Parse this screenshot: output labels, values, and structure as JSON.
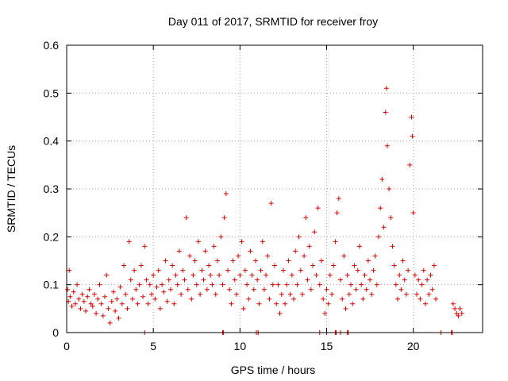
{
  "chart_data": {
    "type": "scatter",
    "title": "Day 011 of 2017, SRMTID for receiver froy",
    "xlabel": "GPS time / hours",
    "ylabel": "SRMTID / TECUs",
    "xlim": [
      0,
      24
    ],
    "ylim": [
      0,
      0.6
    ],
    "xticks": [
      0,
      5,
      10,
      15,
      20
    ],
    "yticks": [
      0,
      0.1,
      0.2,
      0.3,
      0.4,
      0.5,
      0.6
    ],
    "xtick_labels": [
      "0",
      "5",
      "10",
      "15",
      "20"
    ],
    "ytick_labels": [
      "0",
      "0.1",
      "0.2",
      "0.3",
      "0.4",
      "0.5",
      "0.6"
    ],
    "grid": true,
    "marker": "+",
    "color": "#e00000",
    "series": [
      {
        "name": "SRMTID",
        "points": [
          [
            0.05,
            0.09
          ],
          [
            0.1,
            0.065
          ],
          [
            0.15,
            0.13
          ],
          [
            0.2,
            0.075
          ],
          [
            0.3,
            0.055
          ],
          [
            0.4,
            0.085
          ],
          [
            0.5,
            0.06
          ],
          [
            0.6,
            0.1
          ],
          [
            0.7,
            0.07
          ],
          [
            0.8,
            0.05
          ],
          [
            0.9,
            0.08
          ],
          [
            1.0,
            0.065
          ],
          [
            1.1,
            0.045
          ],
          [
            1.2,
            0.075
          ],
          [
            1.3,
            0.09
          ],
          [
            1.4,
            0.06
          ],
          [
            1.5,
            0.055
          ],
          [
            1.6,
            0.08
          ],
          [
            1.7,
            0.04
          ],
          [
            1.8,
            0.07
          ],
          [
            1.9,
            0.1
          ],
          [
            2.0,
            0.06
          ],
          [
            2.1,
            0.035
          ],
          [
            2.2,
            0.075
          ],
          [
            2.3,
            0.12
          ],
          [
            2.4,
            0.05
          ],
          [
            2.5,
            0.02
          ],
          [
            2.6,
            0.065
          ],
          [
            2.7,
            0.085
          ],
          [
            2.8,
            0.045
          ],
          [
            2.9,
            0.07
          ],
          [
            3.0,
            0.03
          ],
          [
            3.1,
            0.095
          ],
          [
            3.2,
            0.06
          ],
          [
            3.3,
            0.14
          ],
          [
            3.4,
            0.08
          ],
          [
            3.5,
            0.05
          ],
          [
            3.6,
            0.19
          ],
          [
            3.7,
            0.11
          ],
          [
            3.8,
            0.07
          ],
          [
            3.9,
            0.13
          ],
          [
            4.0,
            0.09
          ],
          [
            4.1,
            0.06
          ],
          [
            4.2,
            0.1
          ],
          [
            4.3,
            0.14
          ],
          [
            4.4,
            0.075
          ],
          [
            4.5,
            0.18
          ],
          [
            4.6,
            0.11
          ],
          [
            4.7,
            0.06
          ],
          [
            4.8,
            0.1
          ],
          [
            4.9,
            0.08
          ],
          [
            5.0,
            0.12
          ],
          [
            5.1,
            0.07
          ],
          [
            5.2,
            0.095
          ],
          [
            5.3,
            0.13
          ],
          [
            5.4,
            0.05
          ],
          [
            5.5,
            0.1
          ],
          [
            5.6,
            0.085
          ],
          [
            5.7,
            0.15
          ],
          [
            5.8,
            0.065
          ],
          [
            5.9,
            0.11
          ],
          [
            6.0,
            0.09
          ],
          [
            6.1,
            0.14
          ],
          [
            6.2,
            0.06
          ],
          [
            6.3,
            0.12
          ],
          [
            6.4,
            0.1
          ],
          [
            6.5,
            0.17
          ],
          [
            6.6,
            0.08
          ],
          [
            6.7,
            0.13
          ],
          [
            6.8,
            0.11
          ],
          [
            6.9,
            0.24
          ],
          [
            7.0,
            0.09
          ],
          [
            7.1,
            0.16
          ],
          [
            7.2,
            0.07
          ],
          [
            7.3,
            0.12
          ],
          [
            7.4,
            0.15
          ],
          [
            7.5,
            0.1
          ],
          [
            7.6,
            0.19
          ],
          [
            7.7,
            0.08
          ],
          [
            7.8,
            0.13
          ],
          [
            7.9,
            0.11
          ],
          [
            8.0,
            0.17
          ],
          [
            8.1,
            0.09
          ],
          [
            8.2,
            0.14
          ],
          [
            8.3,
            0.12
          ],
          [
            8.4,
            0.1
          ],
          [
            8.5,
            0.18
          ],
          [
            8.6,
            0.08
          ],
          [
            8.7,
            0.15
          ],
          [
            8.8,
            0.12
          ],
          [
            8.9,
            0.2
          ],
          [
            9.0,
            0.1
          ],
          [
            9.1,
            0.24
          ],
          [
            9.2,
            0.29
          ],
          [
            9.3,
            0.13
          ],
          [
            9.4,
            0.09
          ],
          [
            9.5,
            0.06
          ],
          [
            9.6,
            0.15
          ],
          [
            9.7,
            0.11
          ],
          [
            9.8,
            0.08
          ],
          [
            9.9,
            0.16
          ],
          [
            10.0,
            0.12
          ],
          [
            10.1,
            0.19
          ],
          [
            10.2,
            0.05
          ],
          [
            10.3,
            0.13
          ],
          [
            10.4,
            0.1
          ],
          [
            10.5,
            0.07
          ],
          [
            10.6,
            0.17
          ],
          [
            10.7,
            0.12
          ],
          [
            10.8,
            0.09
          ],
          [
            10.9,
            0.15
          ],
          [
            11.0,
            0.11
          ],
          [
            11.1,
            0.06
          ],
          [
            11.2,
            0.13
          ],
          [
            11.3,
            0.19
          ],
          [
            11.4,
            0.09
          ],
          [
            11.5,
            0.12
          ],
          [
            11.6,
            0.16
          ],
          [
            11.7,
            0.07
          ],
          [
            11.8,
            0.27
          ],
          [
            11.9,
            0.1
          ],
          [
            12.0,
            0.14
          ],
          [
            12.1,
            0.06
          ],
          [
            12.2,
            0.1
          ],
          [
            12.3,
            0.04
          ],
          [
            12.4,
            0.08
          ],
          [
            12.5,
            0.13
          ],
          [
            12.6,
            0.06
          ],
          [
            12.7,
            0.1
          ],
          [
            12.8,
            0.15
          ],
          [
            12.9,
            0.08
          ],
          [
            13.0,
            0.12
          ],
          [
            13.1,
            0.07
          ],
          [
            13.2,
            0.17
          ],
          [
            13.3,
            0.1
          ],
          [
            13.4,
            0.2
          ],
          [
            13.5,
            0.13
          ],
          [
            13.6,
            0.08
          ],
          [
            13.7,
            0.16
          ],
          [
            13.8,
            0.24
          ],
          [
            13.9,
            0.11
          ],
          [
            14.0,
            0.18
          ],
          [
            14.1,
            0.09
          ],
          [
            14.2,
            0.14
          ],
          [
            14.3,
            0.21
          ],
          [
            14.4,
            0.12
          ],
          [
            14.5,
            0.26
          ],
          [
            14.6,
            0.1
          ],
          [
            14.7,
            0.15
          ],
          [
            14.8,
            0.07
          ],
          [
            14.9,
            0.04
          ],
          [
            15.0,
            0.09
          ],
          [
            15.1,
            0.06
          ],
          [
            15.2,
            0.12
          ],
          [
            15.3,
            0.08
          ],
          [
            15.4,
            0.14
          ],
          [
            15.5,
            0.19
          ],
          [
            15.6,
            0.25
          ],
          [
            15.7,
            0.28
          ],
          [
            15.8,
            0.11
          ],
          [
            15.9,
            0.07
          ],
          [
            16.0,
            0.16
          ],
          [
            16.1,
            0.05
          ],
          [
            16.2,
            0.12
          ],
          [
            16.3,
            0.08
          ],
          [
            16.4,
            0.1
          ],
          [
            16.5,
            0.06
          ],
          [
            16.6,
            0.14
          ],
          [
            16.7,
            0.09
          ],
          [
            16.8,
            0.13
          ],
          [
            16.9,
            0.18
          ],
          [
            17.0,
            0.1
          ],
          [
            17.1,
            0.07
          ],
          [
            17.2,
            0.12
          ],
          [
            17.3,
            0.09
          ],
          [
            17.4,
            0.15
          ],
          [
            17.5,
            0.11
          ],
          [
            17.6,
            0.08
          ],
          [
            17.7,
            0.13
          ],
          [
            17.8,
            0.16
          ],
          [
            17.9,
            0.1
          ],
          [
            18.0,
            0.2
          ],
          [
            18.1,
            0.26
          ],
          [
            18.2,
            0.32
          ],
          [
            18.3,
            0.22
          ],
          [
            18.4,
            0.46
          ],
          [
            18.45,
            0.51
          ],
          [
            18.5,
            0.39
          ],
          [
            18.6,
            0.3
          ],
          [
            18.7,
            0.24
          ],
          [
            18.8,
            0.18
          ],
          [
            18.9,
            0.14
          ],
          [
            19.0,
            0.1
          ],
          [
            19.1,
            0.07
          ],
          [
            19.2,
            0.12
          ],
          [
            19.3,
            0.09
          ],
          [
            19.4,
            0.15
          ],
          [
            19.5,
            0.11
          ],
          [
            19.6,
            0.08
          ],
          [
            19.7,
            0.13
          ],
          [
            19.8,
            0.35
          ],
          [
            19.9,
            0.45
          ],
          [
            19.95,
            0.41
          ],
          [
            20.0,
            0.25
          ],
          [
            20.1,
            0.12
          ],
          [
            20.2,
            0.08
          ],
          [
            20.3,
            0.11
          ],
          [
            20.4,
            0.07
          ],
          [
            20.5,
            0.1
          ],
          [
            20.6,
            0.13
          ],
          [
            20.7,
            0.06
          ],
          [
            20.8,
            0.11
          ],
          [
            20.9,
            0.08
          ],
          [
            21.0,
            0.12
          ],
          [
            21.1,
            0.09
          ],
          [
            21.2,
            0.14
          ],
          [
            21.3,
            0.07
          ],
          [
            22.3,
            0.06
          ],
          [
            22.4,
            0.05
          ],
          [
            22.5,
            0.04
          ],
          [
            22.6,
            0.035
          ],
          [
            22.7,
            0.05
          ],
          [
            22.8,
            0.04
          ]
        ],
        "zero_points": [
          4.5,
          9.0,
          9.05,
          10.95,
          11.05,
          14.6,
          15.0,
          15.5,
          15.55,
          15.8,
          16.2,
          16.25,
          21.6,
          22.2,
          22.25
        ]
      }
    ]
  }
}
